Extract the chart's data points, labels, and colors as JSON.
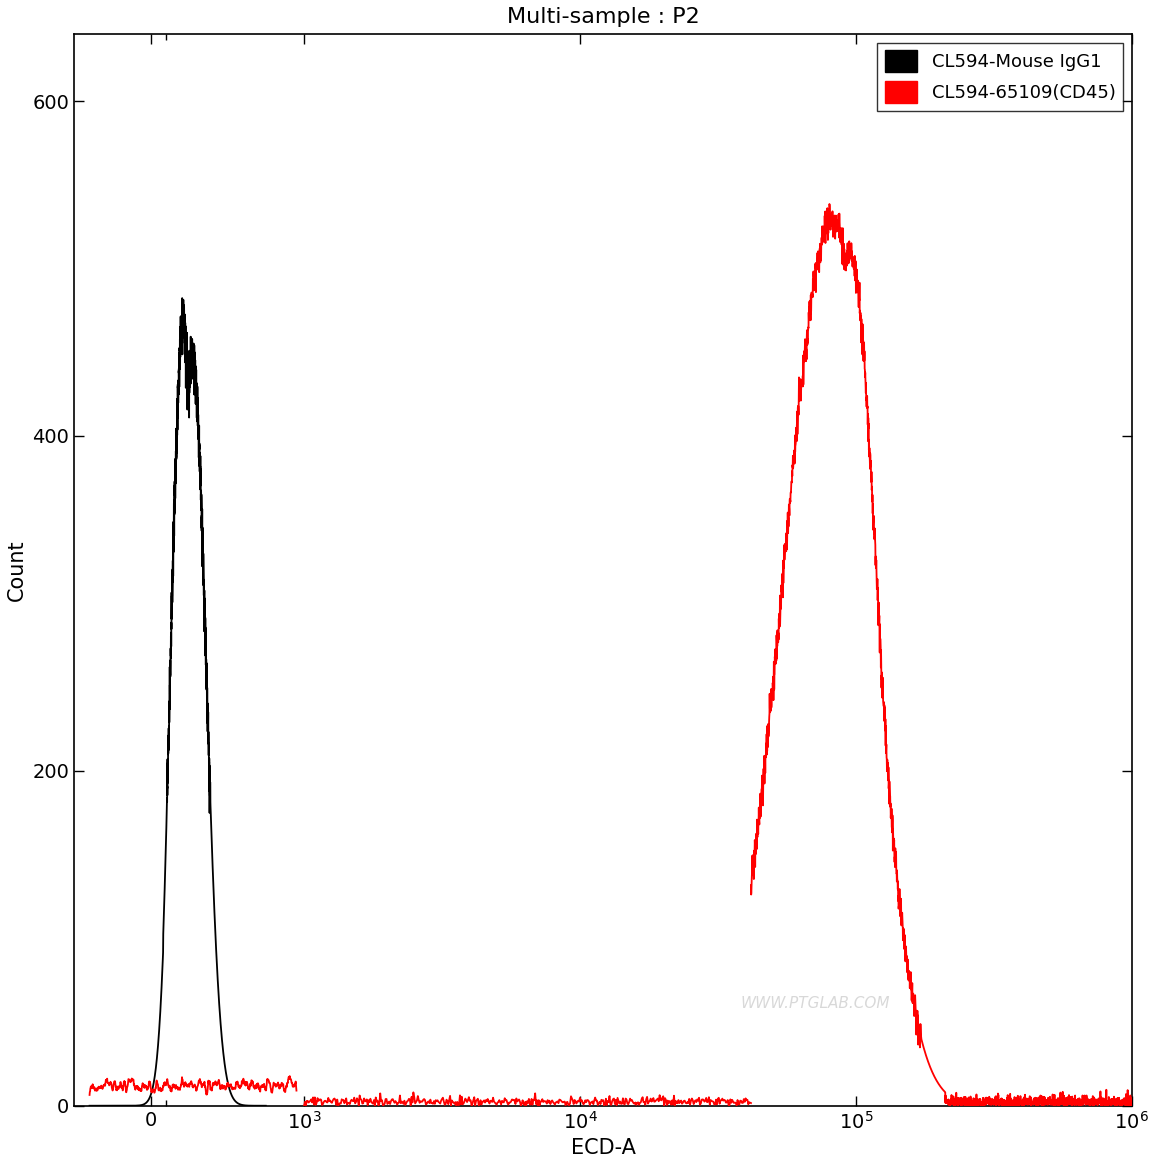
{
  "title": "Multi-sample : P2",
  "xlabel": "ECD-A",
  "ylabel": "Count",
  "ylim": [
    0,
    640
  ],
  "yticks": [
    0,
    200,
    400,
    600
  ],
  "legend_labels": [
    "CL594-Mouse IgG1",
    "CL594-65109(CD45)"
  ],
  "legend_colors": [
    "#000000",
    "#ff0000"
  ],
  "bg_color": "#ffffff",
  "linewidth": 1.3,
  "title_fontsize": 16,
  "label_fontsize": 15,
  "tick_fontsize": 14,
  "watermark": "WWW.PTGLAB.COM",
  "linthresh": 1000,
  "linscale": 0.5
}
